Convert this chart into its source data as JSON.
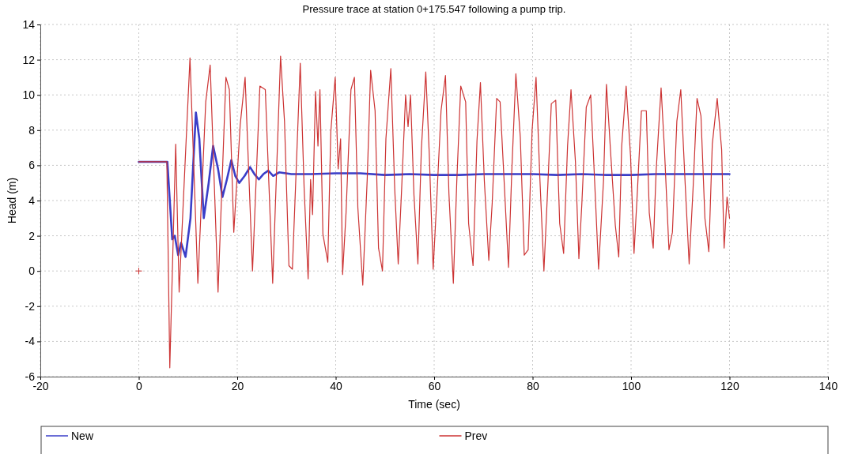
{
  "chart_data": {
    "type": "line",
    "title": "Pressure trace at station 0+175.547 following a pump trip.",
    "xlabel": "Time (sec)",
    "ylabel": "Head (m)",
    "xlim": [
      -20,
      140
    ],
    "xticks": [
      -20,
      0,
      20,
      40,
      60,
      80,
      100,
      120,
      140
    ],
    "ylim": [
      -6,
      14
    ],
    "yticks": [
      -6,
      -4,
      -2,
      0,
      2,
      4,
      6,
      8,
      10,
      12,
      14
    ],
    "grid": true,
    "legend": "bottom",
    "line_style": "solid",
    "marker": "none",
    "series": [
      {
        "name": "New",
        "color": "#3a3ec8",
        "x": [
          0,
          5.8,
          6.8,
          7.3,
          8,
          8.6,
          9.5,
          10.5,
          11.6,
          12.3,
          13.2,
          14.2,
          15.1,
          16.1,
          17,
          17.9,
          18.8,
          19.6,
          20.4,
          21.5,
          22.6,
          23.5,
          24.4,
          25.3,
          26.3,
          27.3,
          28.5,
          31,
          35,
          40,
          45,
          50,
          55,
          60,
          65,
          70,
          75,
          80,
          85,
          90,
          95,
          100,
          105,
          110,
          115,
          120
        ],
        "values": [
          6.2,
          6.2,
          1.8,
          2.0,
          0.9,
          1.6,
          0.8,
          3.0,
          9.0,
          7.5,
          3.0,
          5.0,
          7.1,
          5.8,
          4.2,
          5.2,
          6.3,
          5.4,
          5.0,
          5.4,
          5.9,
          5.5,
          5.2,
          5.5,
          5.7,
          5.4,
          5.6,
          5.5,
          5.5,
          5.55,
          5.55,
          5.45,
          5.5,
          5.45,
          5.45,
          5.5,
          5.5,
          5.5,
          5.45,
          5.5,
          5.45,
          5.45,
          5.5,
          5.5,
          5.5,
          5.5
        ]
      },
      {
        "name": "Prev",
        "color": "#cc3333",
        "x": [
          0,
          5.7,
          6.3,
          7.5,
          8.2,
          9.5,
          10.4,
          12,
          13.6,
          14.5,
          16.1,
          17.7,
          18.4,
          19.3,
          20.6,
          21.6,
          23.1,
          24.6,
          25.7,
          27.2,
          28.8,
          29.6,
          30.5,
          31.2,
          32.8,
          33.6,
          34.4,
          34.9,
          35.3,
          35.9,
          36.4,
          36.8,
          37.4,
          38.4,
          39,
          39.9,
          40.5,
          41,
          41.4,
          42.1,
          43.1,
          43.8,
          44.5,
          45.5,
          46.4,
          47.1,
          48,
          48.7,
          49.5,
          50.2,
          51.2,
          52,
          52.7,
          53.4,
          54.2,
          54.7,
          55.2,
          55.9,
          56.7,
          57.4,
          58.3,
          59,
          59.8,
          60.5,
          61.4,
          62.3,
          63,
          63.9,
          64.6,
          65.4,
          66.4,
          67,
          67.9,
          68.7,
          69.4,
          70.2,
          71.1,
          71.8,
          72.7,
          73.4,
          75.1,
          75.8,
          76.6,
          77.5,
          78.3,
          79.1,
          79.9,
          80.7,
          81.5,
          82.3,
          83.1,
          83.8,
          84.7,
          85.5,
          86.3,
          87.1,
          87.8,
          88.7,
          89.4,
          90,
          90.9,
          91.8,
          92.6,
          93.4,
          94.4,
          95,
          95.9,
          96.8,
          97.5,
          98.1,
          99,
          99.9,
          100.6,
          101.3,
          102.1,
          103.1,
          103.7,
          104.5,
          105.1,
          106.1,
          106.8,
          107.7,
          108.4,
          109.3,
          110.1,
          111,
          111.8,
          112.6,
          113.4,
          114.2,
          115,
          115.8,
          116.5,
          117.5,
          118.4,
          118.9,
          119.5,
          120
        ],
        "values": [
          6.2,
          6.2,
          -5.5,
          7.2,
          -1.2,
          6.7,
          12.1,
          -0.7,
          9.6,
          11.7,
          -1.2,
          11.0,
          10.3,
          2.2,
          8.3,
          11.0,
          0.0,
          10.5,
          10.3,
          -0.7,
          12.2,
          8.5,
          0.3,
          0.1,
          11.8,
          4.6,
          -0.45,
          5.2,
          3.2,
          10.2,
          7.1,
          10.3,
          2.1,
          0.5,
          7.9,
          11.0,
          5.8,
          7.5,
          -0.2,
          3.3,
          10.3,
          11.0,
          3.6,
          -0.8,
          5.2,
          11.4,
          9.1,
          1.3,
          0.0,
          7.5,
          11.5,
          4.6,
          0.4,
          4.7,
          10.0,
          8.2,
          10.0,
          4.3,
          0.4,
          6.9,
          11.3,
          6.7,
          0.1,
          3.9,
          9.1,
          11.1,
          4.4,
          -0.7,
          5.1,
          10.5,
          9.6,
          2.7,
          0.3,
          7.4,
          10.7,
          5.1,
          0.6,
          3.9,
          9.8,
          9.6,
          0.2,
          5.9,
          11.2,
          7.6,
          0.9,
          1.2,
          8.0,
          11.0,
          5.1,
          0.0,
          4.9,
          9.5,
          9.7,
          2.7,
          1.0,
          7.1,
          10.3,
          6.2,
          0.7,
          3.8,
          9.3,
          10.0,
          5.1,
          0.1,
          5.1,
          10.6,
          6.5,
          2.6,
          0.8,
          7.1,
          10.5,
          6.5,
          1.0,
          4.6,
          9.1,
          9.1,
          3.3,
          1.3,
          5.7,
          10.4,
          6.8,
          1.2,
          2.2,
          8.5,
          10.3,
          4.9,
          0.4,
          4.7,
          9.8,
          8.8,
          3.0,
          1.1,
          7.2,
          9.8,
          6.9,
          1.3,
          4.2,
          3.0
        ]
      },
      {
        "type": "scatter",
        "marker": "cross",
        "color": "#cc3333",
        "x": [
          0
        ],
        "values": [
          0
        ]
      }
    ]
  }
}
